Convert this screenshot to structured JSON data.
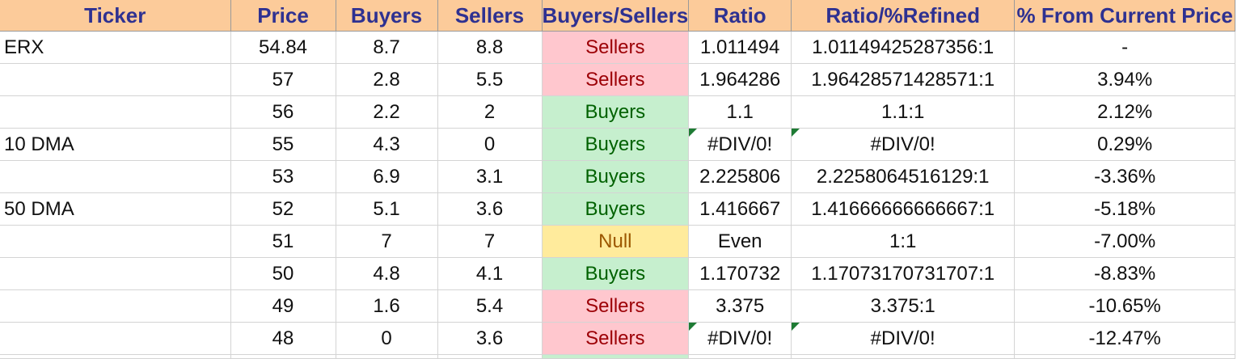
{
  "headers": [
    "Ticker",
    "Price",
    "Buyers",
    "Sellers",
    "Buyers/Sellers",
    "Ratio",
    "Ratio/%Refined",
    "% From Current Price"
  ],
  "rows": [
    {
      "ticker": "ERX",
      "price": "54.84",
      "buyers": "8.7",
      "sellers": "8.8",
      "side": "Sellers",
      "ratio": "1.011494",
      "refined": "1.01149425287356:1",
      "pct": "-"
    },
    {
      "ticker": "",
      "price": "57",
      "buyers": "2.8",
      "sellers": "5.5",
      "side": "Sellers",
      "ratio": "1.964286",
      "refined": "1.96428571428571:1",
      "pct": "3.94%"
    },
    {
      "ticker": "",
      "price": "56",
      "buyers": "2.2",
      "sellers": "2",
      "side": "Buyers",
      "ratio": "1.1",
      "refined": "1.1:1",
      "pct": "2.12%"
    },
    {
      "ticker": "10 DMA",
      "price": "55",
      "buyers": "4.3",
      "sellers": "0",
      "side": "Buyers",
      "ratio": "#DIV/0!",
      "refined": "#DIV/0!",
      "pct": "0.29%"
    },
    {
      "ticker": "",
      "price": "53",
      "buyers": "6.9",
      "sellers": "3.1",
      "side": "Buyers",
      "ratio": "2.225806",
      "refined": "2.2258064516129:1",
      "pct": "-3.36%"
    },
    {
      "ticker": "50 DMA",
      "price": "52",
      "buyers": "5.1",
      "sellers": "3.6",
      "side": "Buyers",
      "ratio": "1.416667",
      "refined": "1.41666666666667:1",
      "pct": "-5.18%"
    },
    {
      "ticker": "",
      "price": "51",
      "buyers": "7",
      "sellers": "7",
      "side": "Null",
      "ratio": "Even",
      "refined": "1:1",
      "pct": "-7.00%"
    },
    {
      "ticker": "",
      "price": "50",
      "buyers": "4.8",
      "sellers": "4.1",
      "side": "Buyers",
      "ratio": "1.170732",
      "refined": "1.17073170731707:1",
      "pct": "-8.83%"
    },
    {
      "ticker": "",
      "price": "49",
      "buyers": "1.6",
      "sellers": "5.4",
      "side": "Sellers",
      "ratio": "3.375",
      "refined": "3.375:1",
      "pct": "-10.65%"
    },
    {
      "ticker": "",
      "price": "48",
      "buyers": "0",
      "sellers": "3.6",
      "side": "Sellers",
      "ratio": "#DIV/0!",
      "refined": "#DIV/0!",
      "pct": "-12.47%"
    }
  ],
  "colors": {
    "header_bg": "#FCCB9A",
    "header_text": "#2E3191",
    "sellers_bg": "#FFC7CE",
    "sellers_text": "#9C0006",
    "buyers_bg": "#C6EFCE",
    "buyers_text": "#006100",
    "null_bg": "#FFEB9C",
    "null_text": "#9C5700",
    "error_flag": "#1E7B34"
  }
}
